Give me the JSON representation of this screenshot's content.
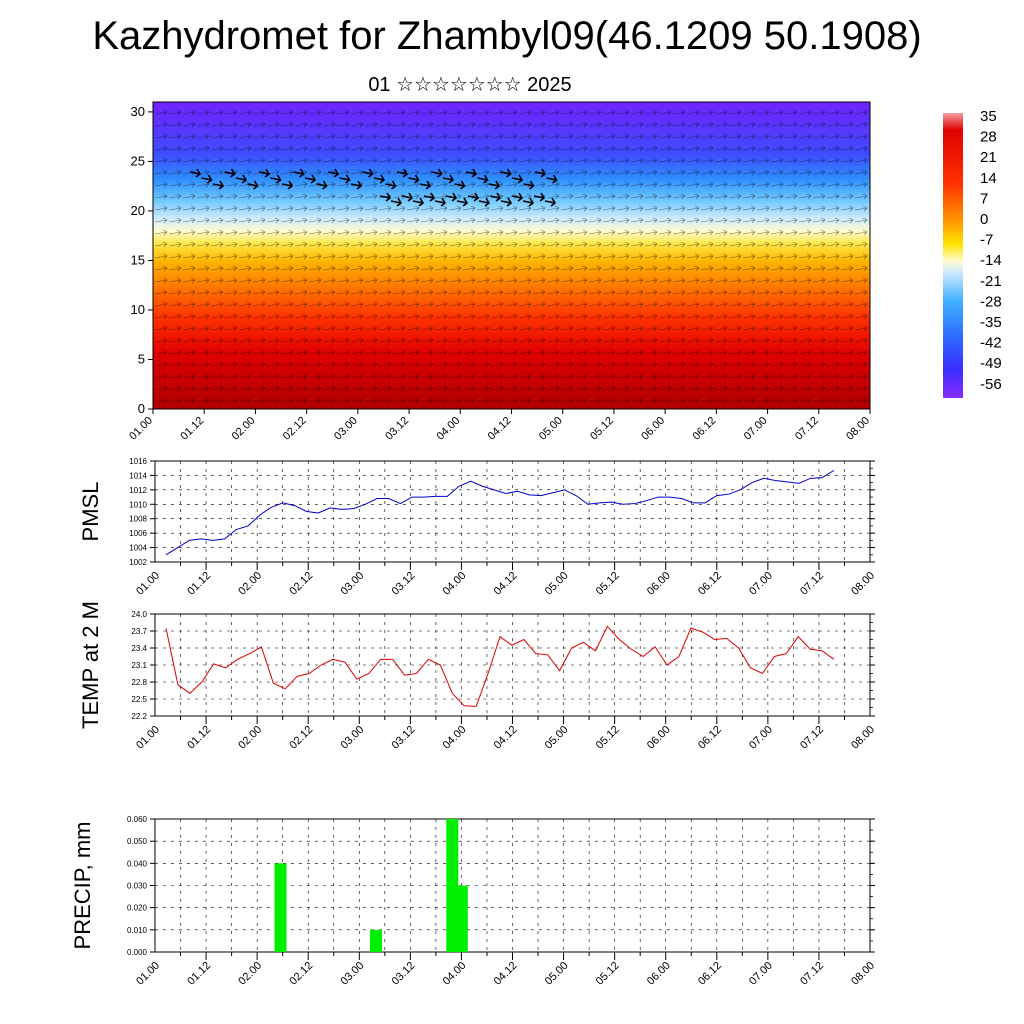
{
  "title": "Kazhydromet for Zhambyl09(46.1209 50.1908)",
  "subtitle": "01 ☆☆☆☆☆☆☆ 2025",
  "chart_data": [
    {
      "type": "heatmap",
      "name": "cross-section",
      "x_ticks": [
        "01.00",
        "01.12",
        "02.00",
        "02.12",
        "03.00",
        "03.12",
        "04.00",
        "04.12",
        "05.00",
        "05.12",
        "06.00",
        "06.12",
        "07.00",
        "07.12",
        "08.00"
      ],
      "y_ticks": [
        0,
        5,
        10,
        15,
        20,
        25,
        30
      ],
      "ylim": [
        0,
        31
      ],
      "colorbar_labels": [
        "35",
        "28",
        "21",
        "14",
        "7",
        "0",
        "-7",
        "-14",
        "-21",
        "-28",
        "-35",
        "-42",
        "-49",
        "-56"
      ],
      "colors": {
        "hot": "#cc0000",
        "warm": "#ff6600",
        "mild": "#ffcc00",
        "neutral": "#ffffcc",
        "cool": "#66ccff",
        "cold": "#3366ff",
        "frozen": "#6a1cff"
      }
    },
    {
      "type": "line",
      "ylabel": "PMSL",
      "color": "#0000cc",
      "ylim": [
        1002,
        1016
      ],
      "y_ticks": [
        "1002",
        "1004",
        "1006",
        "1008",
        "1010",
        "1012",
        "1014",
        "1016"
      ],
      "x_ticks": [
        "01.00",
        "01.12",
        "02.00",
        "02.12",
        "03.00",
        "03.12",
        "04.00",
        "04.12",
        "05.00",
        "05.12",
        "06.00",
        "06.12",
        "07.00",
        "07.12",
        "08.00"
      ],
      "values": [
        1003,
        1004,
        1005,
        1005.2,
        1005,
        1005.2,
        1006.5,
        1007,
        1008.5,
        1009.6,
        1010.2,
        1009.8,
        1009,
        1008.8,
        1009.5,
        1009.3,
        1009.4,
        1010,
        1010.8,
        1010.8,
        1010.1,
        1011,
        1011,
        1011.1,
        1011.1,
        1012.5,
        1013.2,
        1012.5,
        1012,
        1011.5,
        1011.8,
        1011.3,
        1011.2,
        1011.6,
        1012,
        1011.2,
        1010,
        1010.2,
        1010.3,
        1010,
        1010.1,
        1010.5,
        1011,
        1011,
        1010.8,
        1010.2,
        1010.2,
        1011.2,
        1011.4,
        1012,
        1013,
        1013.6,
        1013.3,
        1013.1,
        1012.9,
        1013.6,
        1013.7,
        1014.7
      ]
    },
    {
      "type": "line",
      "ylabel": "TEMP at 2 M",
      "color": "#dd0000",
      "ylim": [
        22.2,
        24.0
      ],
      "y_ticks": [
        "22.2",
        "22.5",
        "22.8",
        "23.1",
        "23.4",
        "23.7",
        "24.0"
      ],
      "x_ticks": [
        "01.00",
        "01.12",
        "02.00",
        "02.12",
        "03.00",
        "03.12",
        "04.00",
        "04.12",
        "05.00",
        "05.12",
        "06.00",
        "06.12",
        "07.00",
        "07.12",
        "08.00"
      ],
      "values": [
        23.75,
        22.75,
        22.6,
        22.8,
        23.12,
        23.05,
        23.2,
        23.3,
        23.42,
        22.78,
        22.68,
        22.9,
        22.95,
        23.1,
        23.2,
        23.15,
        22.85,
        22.95,
        23.2,
        23.2,
        22.92,
        22.95,
        23.2,
        23.1,
        22.6,
        22.38,
        22.37,
        22.95,
        23.6,
        23.45,
        23.55,
        23.3,
        23.28,
        23.0,
        23.4,
        23.5,
        23.35,
        23.78,
        23.55,
        23.38,
        23.25,
        23.42,
        23.1,
        23.25,
        23.75,
        23.68,
        23.55,
        23.57,
        23.4,
        23.05,
        22.95,
        23.25,
        23.3,
        23.6,
        23.38,
        23.35,
        23.2
      ]
    },
    {
      "type": "bar",
      "ylabel": "PRECIP, mm",
      "color": "#00ee00",
      "ylim": [
        0,
        0.06
      ],
      "y_ticks": [
        "0.000",
        "0.010",
        "0.020",
        "0.030",
        "0.040",
        "0.050",
        "0.060"
      ],
      "x_ticks": [
        "01.00",
        "01.12",
        "02.00",
        "02.12",
        "03.00",
        "03.12",
        "04.00",
        "04.12",
        "05.00",
        "05.12",
        "06.00",
        "06.12",
        "07.00",
        "07.12",
        "08.00"
      ],
      "bars": [
        {
          "t": 2.2,
          "value": 0.04
        },
        {
          "t": 3.2,
          "value": 0.01
        },
        {
          "t": 4.0,
          "value": 0.06
        },
        {
          "t": 4.1,
          "value": 0.03
        }
      ]
    }
  ]
}
